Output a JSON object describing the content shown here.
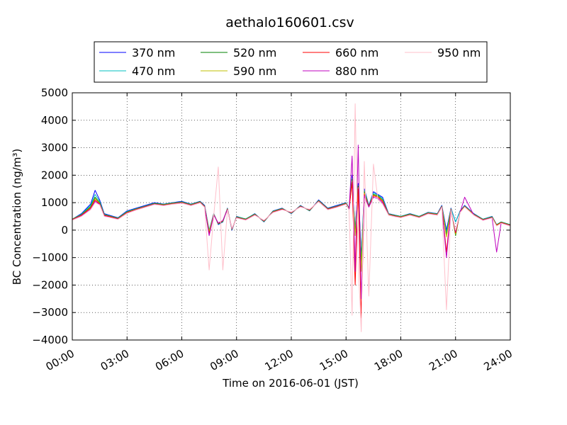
{
  "chart_data": {
    "type": "line",
    "title": "aethalo160601.csv",
    "xlabel": "Time on 2016-06-01 (JST)",
    "ylabel": "BC Concentration (ng/m³)",
    "xlim": [
      "00:00",
      "24:00"
    ],
    "ylim": [
      -4000,
      5000
    ],
    "x_ticks": [
      "00:00",
      "03:00",
      "06:00",
      "09:00",
      "12:00",
      "15:00",
      "18:00",
      "21:00",
      "24:00"
    ],
    "y_ticks": [
      -4000,
      -3000,
      -2000,
      -1000,
      0,
      1000,
      2000,
      3000,
      4000,
      5000
    ],
    "grid": true,
    "legend_position": "top",
    "x": [
      "00:00",
      "00:30",
      "01:00",
      "01:15",
      "01:30",
      "01:45",
      "02:00",
      "02:30",
      "03:00",
      "03:30",
      "04:00",
      "04:30",
      "05:00",
      "05:30",
      "06:00",
      "06:30",
      "07:00",
      "07:15",
      "07:30",
      "07:45",
      "08:00",
      "08:15",
      "08:30",
      "08:45",
      "09:00",
      "09:30",
      "10:00",
      "10:30",
      "11:00",
      "11:30",
      "12:00",
      "12:30",
      "13:00",
      "13:30",
      "14:00",
      "14:30",
      "15:00",
      "15:10",
      "15:20",
      "15:30",
      "15:40",
      "15:50",
      "16:00",
      "16:15",
      "16:30",
      "16:45",
      "17:00",
      "17:20",
      "17:40",
      "18:00",
      "18:30",
      "19:00",
      "19:30",
      "20:00",
      "20:15",
      "20:30",
      "20:45",
      "21:00",
      "21:15",
      "21:30",
      "22:00",
      "22:30",
      "23:00",
      "23:15",
      "23:30",
      "24:00"
    ],
    "series": [
      {
        "name": "370 nm",
        "color": "#0000ff",
        "values": [
          400,
          600,
          950,
          1450,
          1100,
          600,
          550,
          450,
          700,
          800,
          900,
          1000,
          950,
          1000,
          1050,
          950,
          1050,
          900,
          0,
          600,
          200,
          300,
          800,
          0,
          500,
          400,
          600,
          300,
          700,
          800,
          600,
          900,
          700,
          1100,
          800,
          900,
          1000,
          800,
          2000,
          0,
          1700,
          -1000,
          1500,
          900,
          1400,
          1300,
          1200,
          600,
          550,
          500,
          600,
          500,
          650,
          600,
          900,
          0,
          800,
          300,
          700,
          900,
          600,
          400,
          500,
          200,
          300,
          200
        ]
      },
      {
        "name": "470 nm",
        "color": "#00bfbf",
        "values": [
          400,
          580,
          900,
          1300,
          1050,
          580,
          530,
          440,
          680,
          780,
          880,
          980,
          940,
          990,
          1030,
          940,
          1040,
          880,
          0,
          590,
          220,
          310,
          790,
          20,
          490,
          410,
          590,
          310,
          690,
          790,
          610,
          890,
          710,
          1080,
          790,
          880,
          990,
          790,
          1900,
          20,
          1650,
          -1100,
          1450,
          880,
          1350,
          1280,
          1150,
          590,
          540,
          500,
          590,
          500,
          640,
          590,
          880,
          -100,
          780,
          300,
          690,
          880,
          590,
          400,
          490,
          200,
          300,
          200
        ]
      },
      {
        "name": "520 nm",
        "color": "#008000",
        "values": [
          400,
          560,
          850,
          1200,
          1000,
          560,
          520,
          430,
          660,
          770,
          870,
          970,
          930,
          980,
          1020,
          930,
          1030,
          870,
          -100,
          580,
          230,
          320,
          780,
          30,
          480,
          400,
          580,
          320,
          680,
          780,
          620,
          880,
          720,
          1070,
          780,
          870,
          980,
          780,
          1850,
          -100,
          1600,
          -1300,
          1400,
          870,
          1300,
          1250,
          1100,
          580,
          530,
          490,
          580,
          490,
          630,
          580,
          870,
          -200,
          770,
          -200,
          680,
          870,
          580,
          390,
          480,
          190,
          290,
          190
        ]
      },
      {
        "name": "590 nm",
        "color": "#bfbf00",
        "values": [
          390,
          550,
          820,
          1150,
          980,
          550,
          510,
          420,
          650,
          760,
          860,
          960,
          920,
          970,
          1010,
          920,
          1020,
          860,
          -50,
          570,
          240,
          330,
          770,
          40,
          470,
          390,
          570,
          330,
          670,
          770,
          630,
          870,
          730,
          1060,
          770,
          860,
          970,
          770,
          1800,
          -200,
          1550,
          -1500,
          1350,
          860,
          1280,
          1230,
          1080,
          570,
          520,
          480,
          570,
          480,
          620,
          570,
          860,
          -250,
          760,
          -150,
          670,
          860,
          570,
          380,
          470,
          180,
          280,
          180
        ]
      },
      {
        "name": "660 nm",
        "color": "#ff0000",
        "values": [
          380,
          540,
          800,
          1100,
          960,
          540,
          500,
          410,
          640,
          750,
          850,
          950,
          910,
          960,
          1000,
          910,
          1010,
          850,
          -150,
          560,
          250,
          340,
          760,
          50,
          460,
          380,
          560,
          340,
          660,
          760,
          640,
          860,
          740,
          1050,
          760,
          850,
          960,
          760,
          1750,
          -2000,
          1500,
          -3200,
          1300,
          850,
          1250,
          1200,
          1050,
          560,
          510,
          470,
          560,
          470,
          610,
          560,
          850,
          -800,
          750,
          -100,
          660,
          850,
          560,
          370,
          460,
          170,
          270,
          170
        ]
      },
      {
        "name": "880 nm",
        "color": "#bf00bf",
        "values": [
          370,
          520,
          760,
          1050,
          940,
          520,
          480,
          400,
          620,
          740,
          840,
          940,
          900,
          950,
          990,
          900,
          1000,
          840,
          -200,
          550,
          260,
          350,
          750,
          60,
          450,
          370,
          550,
          350,
          650,
          750,
          650,
          850,
          750,
          1040,
          750,
          840,
          950,
          750,
          2700,
          -1500,
          3100,
          -2500,
          1250,
          840,
          1200,
          1150,
          1000,
          550,
          500,
          460,
          550,
          460,
          600,
          550,
          840,
          -1000,
          740,
          -50,
          650,
          1200,
          550,
          360,
          450,
          -800,
          260,
          160
        ]
      },
      {
        "name": "950 nm",
        "color": "#ffc0cb",
        "values": [
          360,
          500,
          740,
          1000,
          920,
          500,
          470,
          390,
          610,
          730,
          830,
          930,
          890,
          940,
          980,
          890,
          990,
          830,
          -1450,
          540,
          2300,
          -1450,
          740,
          70,
          440,
          360,
          540,
          360,
          640,
          740,
          660,
          840,
          760,
          1030,
          740,
          830,
          940,
          740,
          -3100,
          4600,
          -1200,
          -3700,
          2500,
          -2400,
          2400,
          1100,
          950,
          540,
          490,
          450,
          540,
          450,
          590,
          540,
          830,
          -2900,
          730,
          0,
          640,
          840,
          540,
          350,
          440,
          150,
          250,
          150
        ]
      }
    ]
  }
}
